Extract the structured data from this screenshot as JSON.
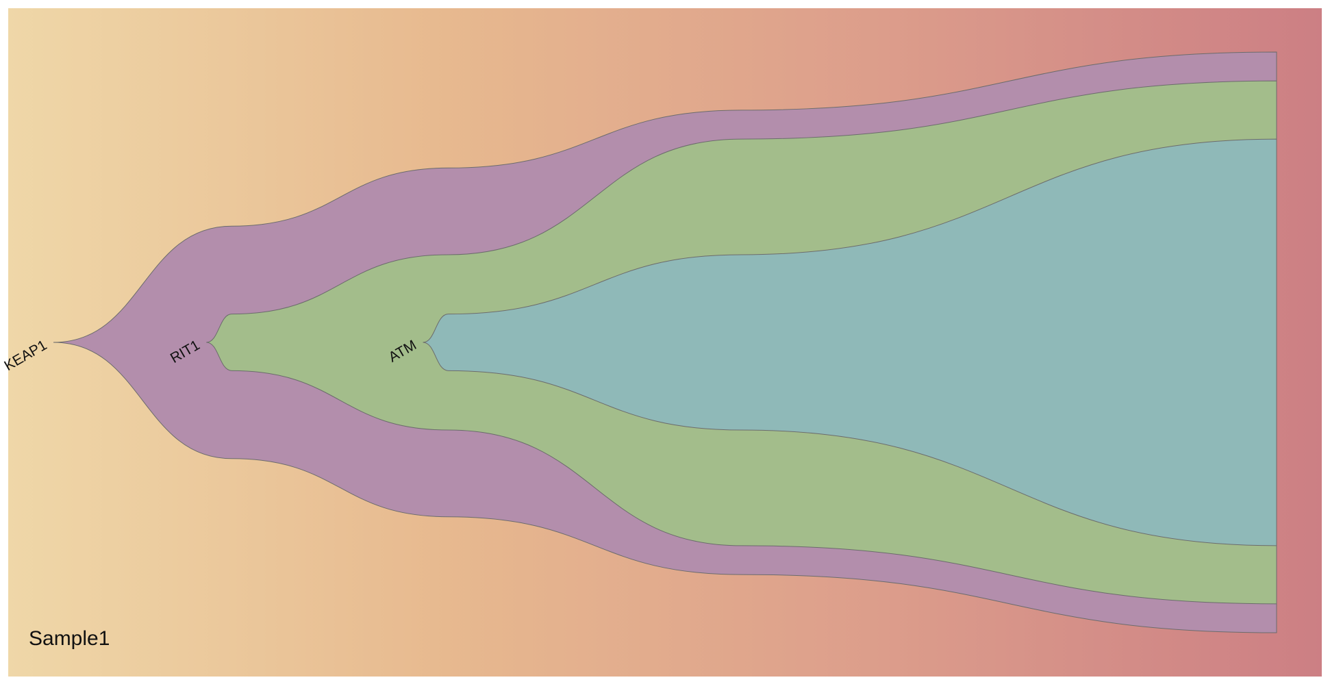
{
  "chart_data": {
    "type": "fish",
    "title": "",
    "sample_label": "Sample1",
    "time_domain": [
      0,
      100
    ],
    "background_gradient": [
      "#efd7a8",
      "#e7b98f",
      "#dc9d8b",
      "#cc7f84"
    ],
    "clones": [
      {
        "name": "KEAP1",
        "color": "#b38eac",
        "parent": null,
        "origin_time": 4,
        "frequency": [
          {
            "t": 4,
            "f": 0.0
          },
          {
            "t": 18,
            "f": 37.4
          },
          {
            "t": 35,
            "f": 56.1
          },
          {
            "t": 58,
            "f": 74.7
          },
          {
            "t": 100,
            "f": 93.4
          }
        ]
      },
      {
        "name": "RIT1",
        "color": "#a3bd8b",
        "parent": "KEAP1",
        "origin_time": 16,
        "frequency": [
          {
            "t": 16,
            "f": 0.0
          },
          {
            "t": 18,
            "f": 9.1
          },
          {
            "t": 35,
            "f": 28.2
          },
          {
            "t": 58,
            "f": 65.4
          },
          {
            "t": 100,
            "f": 84.1
          }
        ]
      },
      {
        "name": "ATM",
        "color": "#8fb9b8",
        "parent": "RIT1",
        "origin_time": 33,
        "frequency": [
          {
            "t": 33,
            "f": 0.0
          },
          {
            "t": 35,
            "f": 9.1
          },
          {
            "t": 58,
            "f": 28.2
          },
          {
            "t": 100,
            "f": 65.4
          }
        ]
      }
    ]
  }
}
